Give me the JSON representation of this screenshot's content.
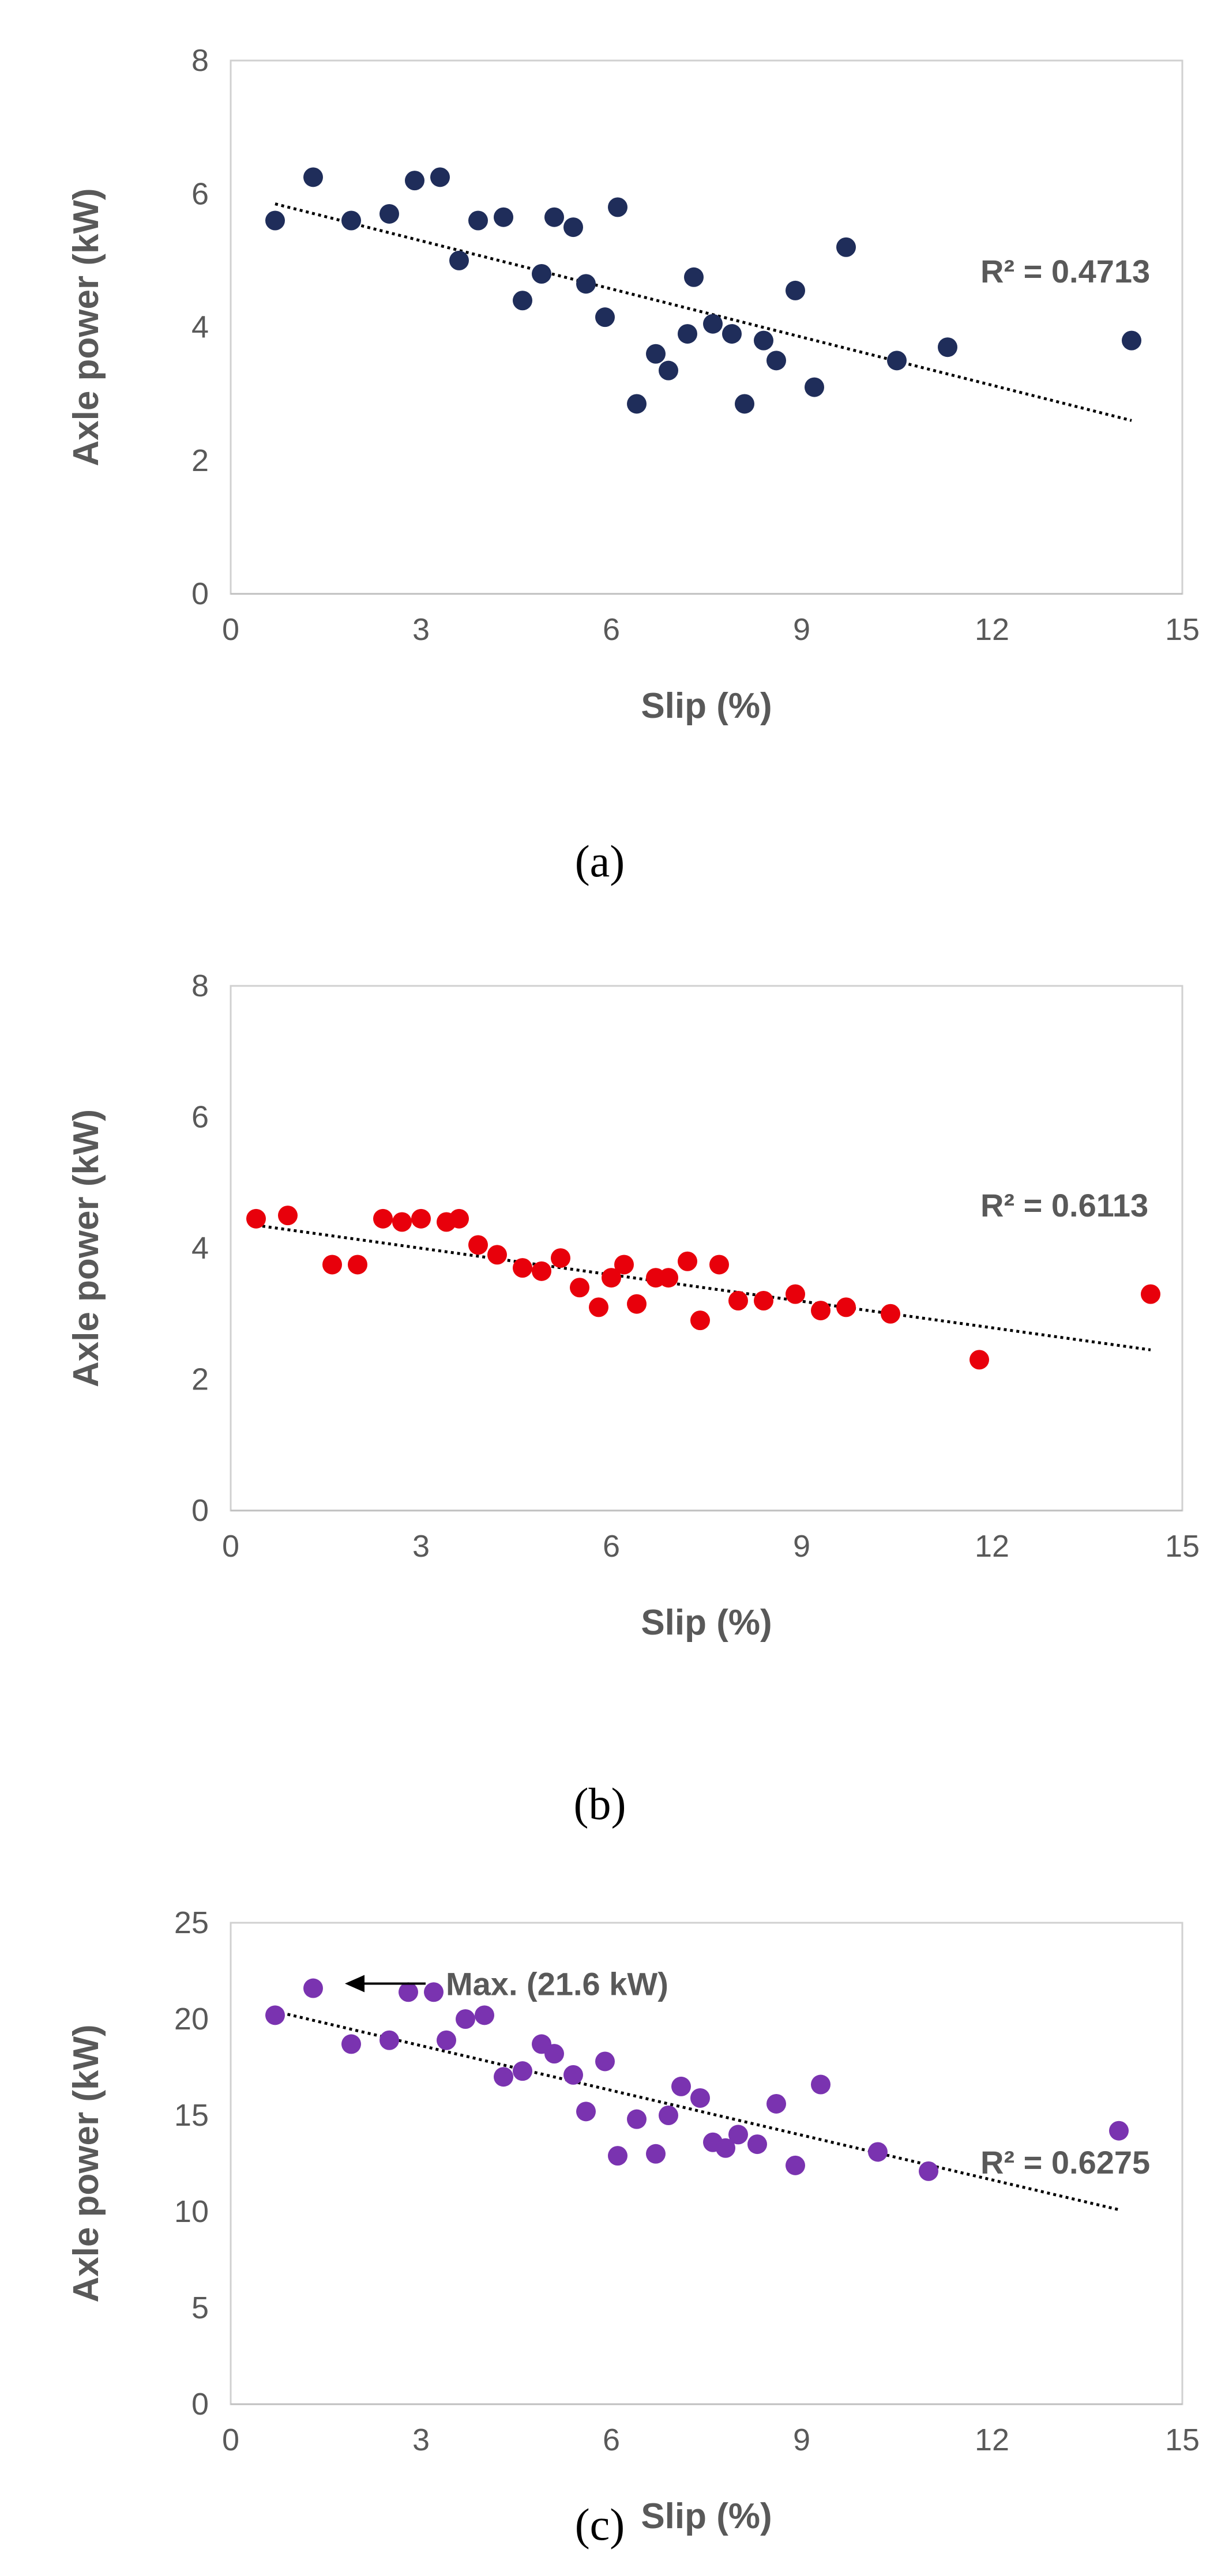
{
  "chart_data": [
    {
      "type": "scatter",
      "caption": "(a)",
      "xlabel": "Slip (%)",
      "ylabel": "Axle power (kW)",
      "xlim": [
        0,
        15
      ],
      "ylim": [
        0,
        8
      ],
      "xticks": [
        "0",
        "3",
        "6",
        "9",
        "12",
        "15"
      ],
      "yticks": [
        "0",
        "2",
        "4",
        "6",
        "8"
      ],
      "color": "#1f2d5a",
      "r2_label": "R² = 0.4713",
      "trendline": {
        "x": [
          0.7,
          14.2
        ],
        "y": [
          5.85,
          2.6
        ]
      },
      "points": [
        [
          0.7,
          5.6
        ],
        [
          1.3,
          6.25
        ],
        [
          1.9,
          5.6
        ],
        [
          2.5,
          5.7
        ],
        [
          2.9,
          6.2
        ],
        [
          3.3,
          6.25
        ],
        [
          3.6,
          5.0
        ],
        [
          3.9,
          5.6
        ],
        [
          4.3,
          5.65
        ],
        [
          4.6,
          4.4
        ],
        [
          4.9,
          4.8
        ],
        [
          5.1,
          5.65
        ],
        [
          5.4,
          5.5
        ],
        [
          5.6,
          4.65
        ],
        [
          5.9,
          4.15
        ],
        [
          6.1,
          5.8
        ],
        [
          6.4,
          2.85
        ],
        [
          6.7,
          3.6
        ],
        [
          6.9,
          3.35
        ],
        [
          7.2,
          3.9
        ],
        [
          7.3,
          4.75
        ],
        [
          7.6,
          4.05
        ],
        [
          7.9,
          3.9
        ],
        [
          8.1,
          2.85
        ],
        [
          8.4,
          3.8
        ],
        [
          8.6,
          3.5
        ],
        [
          8.9,
          4.55
        ],
        [
          9.2,
          3.1
        ],
        [
          9.7,
          5.2
        ],
        [
          10.5,
          3.5
        ],
        [
          11.3,
          3.7
        ],
        [
          14.2,
          3.8
        ]
      ]
    },
    {
      "type": "scatter",
      "caption": "(b)",
      "xlabel": "Slip (%)",
      "ylabel": "Axle power (kW)",
      "xlim": [
        0,
        15
      ],
      "ylim": [
        0,
        8
      ],
      "xticks": [
        "0",
        "3",
        "6",
        "9",
        "12",
        "15"
      ],
      "yticks": [
        "0",
        "2",
        "4",
        "6",
        "8"
      ],
      "color": "#e8000b",
      "r2_label": "R² = 0.6113",
      "trendline": {
        "x": [
          0.4,
          14.5
        ],
        "y": [
          4.35,
          2.45
        ]
      },
      "points": [
        [
          0.4,
          4.45
        ],
        [
          0.9,
          4.5
        ],
        [
          1.6,
          3.75
        ],
        [
          2.0,
          3.75
        ],
        [
          2.4,
          4.45
        ],
        [
          2.7,
          4.4
        ],
        [
          3.0,
          4.45
        ],
        [
          3.4,
          4.4
        ],
        [
          3.6,
          4.45
        ],
        [
          3.9,
          4.05
        ],
        [
          4.2,
          3.9
        ],
        [
          4.6,
          3.7
        ],
        [
          4.9,
          3.65
        ],
        [
          5.2,
          3.85
        ],
        [
          5.5,
          3.4
        ],
        [
          5.8,
          3.1
        ],
        [
          6.0,
          3.55
        ],
        [
          6.2,
          3.75
        ],
        [
          6.4,
          3.15
        ],
        [
          6.7,
          3.55
        ],
        [
          6.9,
          3.55
        ],
        [
          7.2,
          3.8
        ],
        [
          7.4,
          2.9
        ],
        [
          7.7,
          3.75
        ],
        [
          8.0,
          3.2
        ],
        [
          8.4,
          3.2
        ],
        [
          8.9,
          3.3
        ],
        [
          9.3,
          3.05
        ],
        [
          9.7,
          3.1
        ],
        [
          10.4,
          3.0
        ],
        [
          11.8,
          2.3
        ],
        [
          14.5,
          3.3
        ]
      ]
    },
    {
      "type": "scatter",
      "caption": "(c)",
      "xlabel": "Slip (%)",
      "ylabel": "Axle power (kW)",
      "xlim": [
        0,
        15
      ],
      "ylim": [
        0,
        25
      ],
      "xticks": [
        "0",
        "3",
        "6",
        "9",
        "12",
        "15"
      ],
      "yticks": [
        "0",
        "5",
        "10",
        "15",
        "20",
        "25"
      ],
      "color": "#7a33b0",
      "r2_label": "R² = 0.6275",
      "annotation": "Max. (21.6 kW)",
      "annotation_point": [
        1.3,
        21.6
      ],
      "trendline": {
        "x": [
          0.7,
          14.0
        ],
        "y": [
          20.4,
          10.1
        ]
      },
      "points": [
        [
          0.7,
          20.2
        ],
        [
          1.3,
          21.6
        ],
        [
          1.9,
          18.7
        ],
        [
          2.5,
          18.9
        ],
        [
          2.8,
          21.4
        ],
        [
          3.2,
          21.4
        ],
        [
          3.4,
          18.9
        ],
        [
          3.7,
          20.0
        ],
        [
          4.0,
          20.2
        ],
        [
          4.3,
          17.0
        ],
        [
          4.6,
          17.3
        ],
        [
          4.9,
          18.7
        ],
        [
          5.1,
          18.2
        ],
        [
          5.4,
          17.1
        ],
        [
          5.6,
          15.2
        ],
        [
          5.9,
          17.8
        ],
        [
          6.1,
          12.9
        ],
        [
          6.4,
          14.8
        ],
        [
          6.7,
          13.0
        ],
        [
          6.9,
          15.0
        ],
        [
          7.1,
          16.5
        ],
        [
          7.4,
          15.9
        ],
        [
          7.6,
          13.6
        ],
        [
          7.8,
          13.3
        ],
        [
          8.0,
          14.0
        ],
        [
          8.3,
          13.5
        ],
        [
          8.6,
          15.6
        ],
        [
          8.9,
          12.4
        ],
        [
          9.3,
          16.6
        ],
        [
          10.2,
          13.1
        ],
        [
          11.0,
          12.1
        ],
        [
          14.0,
          14.2
        ]
      ]
    }
  ]
}
